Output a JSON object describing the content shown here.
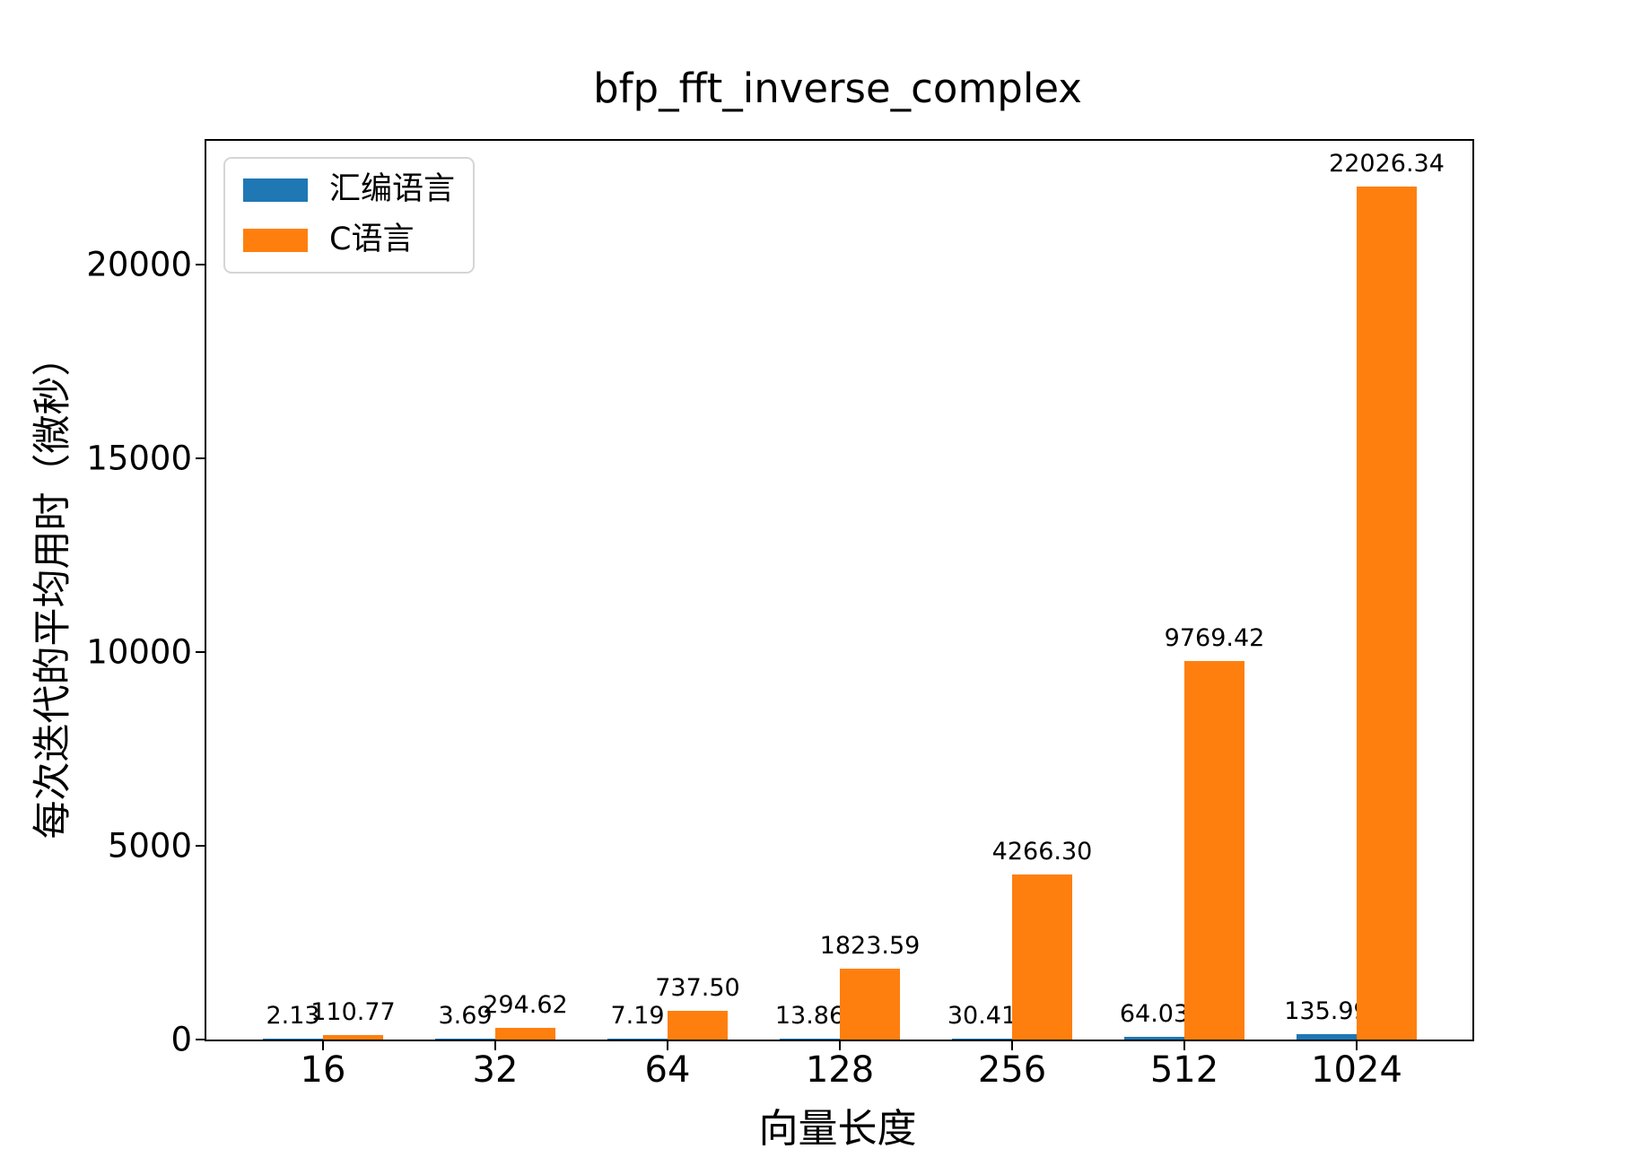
{
  "chart_data": {
    "type": "bar",
    "title": "bfp_fft_inverse_complex",
    "xlabel": "向量长度",
    "ylabel": "每次迭代的平均用时（微秒）",
    "categories": [
      "16",
      "32",
      "64",
      "128",
      "256",
      "512",
      "1024"
    ],
    "series": [
      {
        "name": "汇编语言",
        "color": "#1f77b4",
        "values": [
          2.13,
          3.69,
          7.19,
          13.86,
          30.41,
          64.03,
          135.99
        ],
        "labels": [
          "2.13",
          "3.69",
          "7.19",
          "13.86",
          "30.41",
          "64.03",
          "135.99"
        ]
      },
      {
        "name": "C语言",
        "color": "#ff7f0e",
        "values": [
          110.77,
          294.62,
          737.5,
          1823.59,
          4266.3,
          9769.42,
          22026.34
        ],
        "labels": [
          "110.77",
          "294.62",
          "737.50",
          "1823.59",
          "4266.30",
          "9769.42",
          "22026.34"
        ]
      }
    ],
    "yticks": [
      0,
      5000,
      10000,
      15000,
      20000
    ],
    "ylim": [
      0,
      23200
    ],
    "grid": false,
    "legend_position": "upper left",
    "axis_color": "#000000",
    "background_color": "#ffffff"
  }
}
